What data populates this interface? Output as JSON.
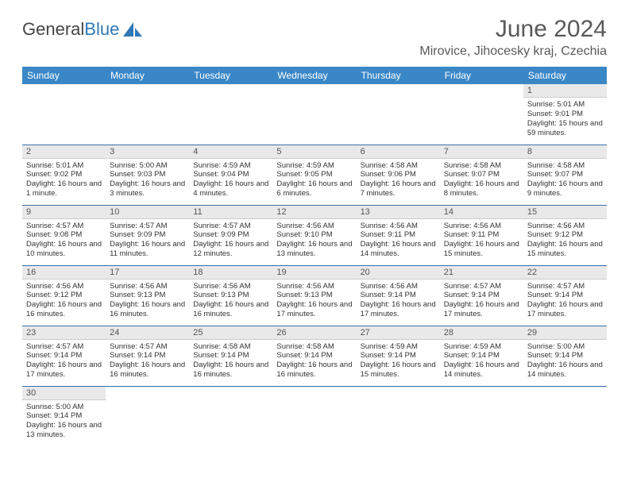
{
  "brand": {
    "name_a": "General",
    "name_b": "Blue"
  },
  "title": "June 2024",
  "location": "Mirovice, Jihocesky kraj, Czechia",
  "weekdays": [
    "Sunday",
    "Monday",
    "Tuesday",
    "Wednesday",
    "Thursday",
    "Friday",
    "Saturday"
  ],
  "colors": {
    "header_bg": "#3a87c7",
    "header_fg": "#ffffff",
    "daynum_bg": "#e9e9e9",
    "rule": "#3a6ea5",
    "title_fg": "#595959"
  },
  "weeks": [
    [
      null,
      null,
      null,
      null,
      null,
      null,
      {
        "n": "1",
        "sunrise": "Sunrise: 5:01 AM",
        "sunset": "Sunset: 9:01 PM",
        "daylight": "Daylight: 15 hours and 59 minutes."
      }
    ],
    [
      {
        "n": "2",
        "sunrise": "Sunrise: 5:01 AM",
        "sunset": "Sunset: 9:02 PM",
        "daylight": "Daylight: 16 hours and 1 minute."
      },
      {
        "n": "3",
        "sunrise": "Sunrise: 5:00 AM",
        "sunset": "Sunset: 9:03 PM",
        "daylight": "Daylight: 16 hours and 3 minutes."
      },
      {
        "n": "4",
        "sunrise": "Sunrise: 4:59 AM",
        "sunset": "Sunset: 9:04 PM",
        "daylight": "Daylight: 16 hours and 4 minutes."
      },
      {
        "n": "5",
        "sunrise": "Sunrise: 4:59 AM",
        "sunset": "Sunset: 9:05 PM",
        "daylight": "Daylight: 16 hours and 6 minutes."
      },
      {
        "n": "6",
        "sunrise": "Sunrise: 4:58 AM",
        "sunset": "Sunset: 9:06 PM",
        "daylight": "Daylight: 16 hours and 7 minutes."
      },
      {
        "n": "7",
        "sunrise": "Sunrise: 4:58 AM",
        "sunset": "Sunset: 9:07 PM",
        "daylight": "Daylight: 16 hours and 8 minutes."
      },
      {
        "n": "8",
        "sunrise": "Sunrise: 4:58 AM",
        "sunset": "Sunset: 9:07 PM",
        "daylight": "Daylight: 16 hours and 9 minutes."
      }
    ],
    [
      {
        "n": "9",
        "sunrise": "Sunrise: 4:57 AM",
        "sunset": "Sunset: 9:08 PM",
        "daylight": "Daylight: 16 hours and 10 minutes."
      },
      {
        "n": "10",
        "sunrise": "Sunrise: 4:57 AM",
        "sunset": "Sunset: 9:09 PM",
        "daylight": "Daylight: 16 hours and 11 minutes."
      },
      {
        "n": "11",
        "sunrise": "Sunrise: 4:57 AM",
        "sunset": "Sunset: 9:09 PM",
        "daylight": "Daylight: 16 hours and 12 minutes."
      },
      {
        "n": "12",
        "sunrise": "Sunrise: 4:56 AM",
        "sunset": "Sunset: 9:10 PM",
        "daylight": "Daylight: 16 hours and 13 minutes."
      },
      {
        "n": "13",
        "sunrise": "Sunrise: 4:56 AM",
        "sunset": "Sunset: 9:11 PM",
        "daylight": "Daylight: 16 hours and 14 minutes."
      },
      {
        "n": "14",
        "sunrise": "Sunrise: 4:56 AM",
        "sunset": "Sunset: 9:11 PM",
        "daylight": "Daylight: 16 hours and 15 minutes."
      },
      {
        "n": "15",
        "sunrise": "Sunrise: 4:56 AM",
        "sunset": "Sunset: 9:12 PM",
        "daylight": "Daylight: 16 hours and 15 minutes."
      }
    ],
    [
      {
        "n": "16",
        "sunrise": "Sunrise: 4:56 AM",
        "sunset": "Sunset: 9:12 PM",
        "daylight": "Daylight: 16 hours and 16 minutes."
      },
      {
        "n": "17",
        "sunrise": "Sunrise: 4:56 AM",
        "sunset": "Sunset: 9:13 PM",
        "daylight": "Daylight: 16 hours and 16 minutes."
      },
      {
        "n": "18",
        "sunrise": "Sunrise: 4:56 AM",
        "sunset": "Sunset: 9:13 PM",
        "daylight": "Daylight: 16 hours and 16 minutes."
      },
      {
        "n": "19",
        "sunrise": "Sunrise: 4:56 AM",
        "sunset": "Sunset: 9:13 PM",
        "daylight": "Daylight: 16 hours and 17 minutes."
      },
      {
        "n": "20",
        "sunrise": "Sunrise: 4:56 AM",
        "sunset": "Sunset: 9:14 PM",
        "daylight": "Daylight: 16 hours and 17 minutes."
      },
      {
        "n": "21",
        "sunrise": "Sunrise: 4:57 AM",
        "sunset": "Sunset: 9:14 PM",
        "daylight": "Daylight: 16 hours and 17 minutes."
      },
      {
        "n": "22",
        "sunrise": "Sunrise: 4:57 AM",
        "sunset": "Sunset: 9:14 PM",
        "daylight": "Daylight: 16 hours and 17 minutes."
      }
    ],
    [
      {
        "n": "23",
        "sunrise": "Sunrise: 4:57 AM",
        "sunset": "Sunset: 9:14 PM",
        "daylight": "Daylight: 16 hours and 17 minutes."
      },
      {
        "n": "24",
        "sunrise": "Sunrise: 4:57 AM",
        "sunset": "Sunset: 9:14 PM",
        "daylight": "Daylight: 16 hours and 16 minutes."
      },
      {
        "n": "25",
        "sunrise": "Sunrise: 4:58 AM",
        "sunset": "Sunset: 9:14 PM",
        "daylight": "Daylight: 16 hours and 16 minutes."
      },
      {
        "n": "26",
        "sunrise": "Sunrise: 4:58 AM",
        "sunset": "Sunset: 9:14 PM",
        "daylight": "Daylight: 16 hours and 16 minutes."
      },
      {
        "n": "27",
        "sunrise": "Sunrise: 4:59 AM",
        "sunset": "Sunset: 9:14 PM",
        "daylight": "Daylight: 16 hours and 15 minutes."
      },
      {
        "n": "28",
        "sunrise": "Sunrise: 4:59 AM",
        "sunset": "Sunset: 9:14 PM",
        "daylight": "Daylight: 16 hours and 14 minutes."
      },
      {
        "n": "29",
        "sunrise": "Sunrise: 5:00 AM",
        "sunset": "Sunset: 9:14 PM",
        "daylight": "Daylight: 16 hours and 14 minutes."
      }
    ],
    [
      {
        "n": "30",
        "sunrise": "Sunrise: 5:00 AM",
        "sunset": "Sunset: 9:14 PM",
        "daylight": "Daylight: 16 hours and 13 minutes."
      },
      null,
      null,
      null,
      null,
      null,
      null
    ]
  ]
}
